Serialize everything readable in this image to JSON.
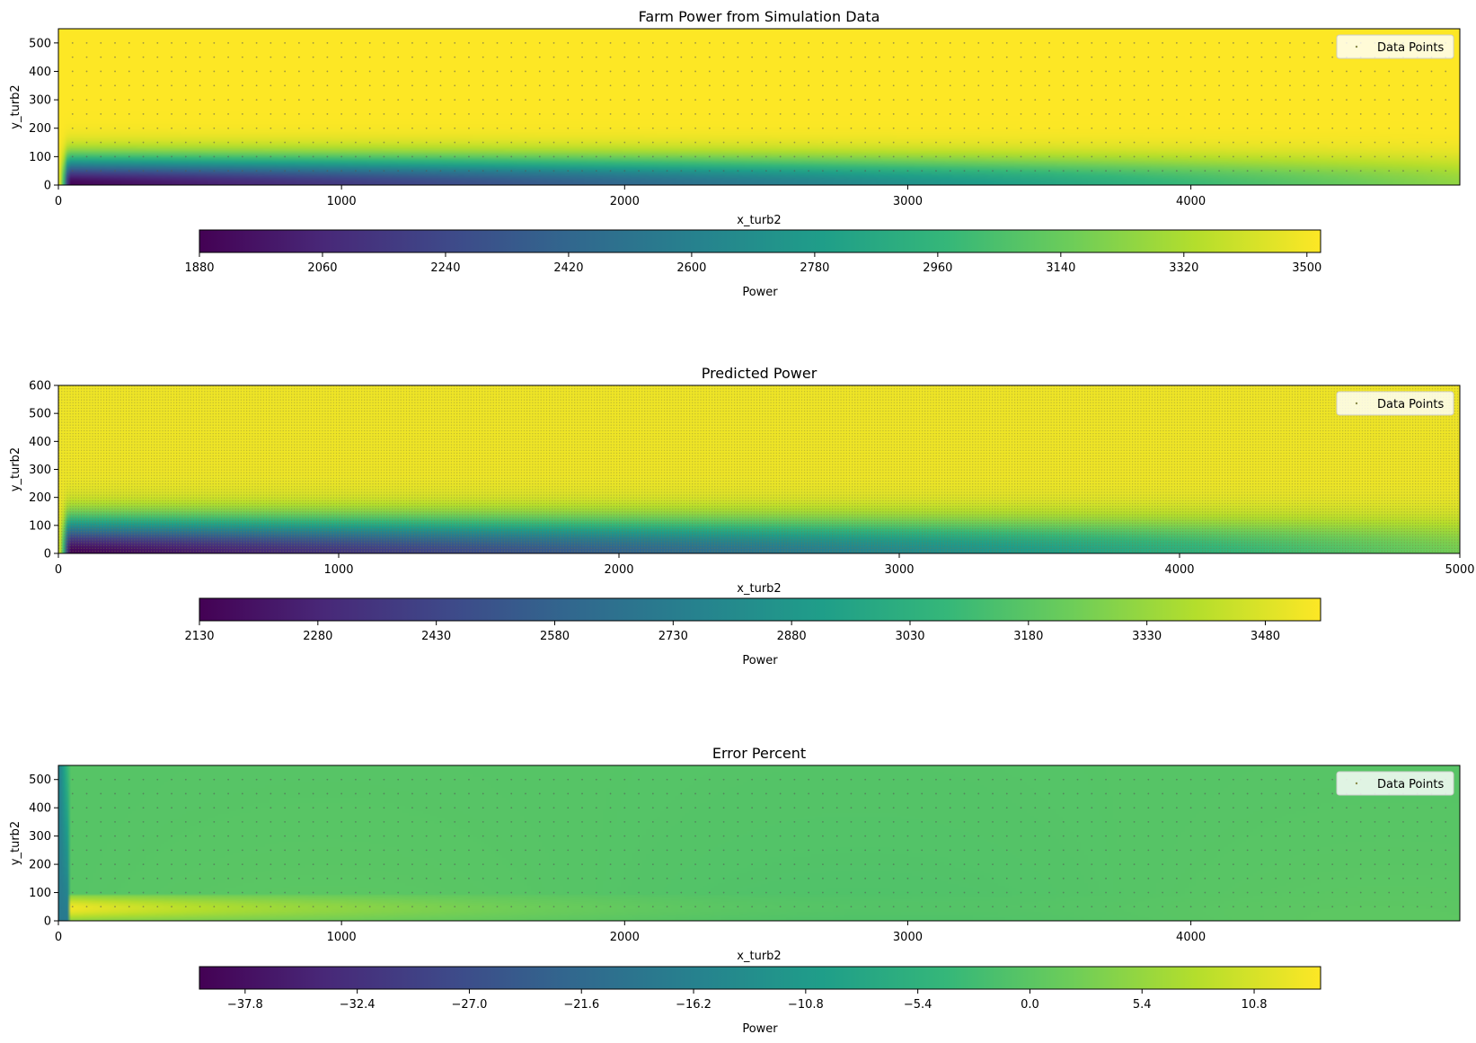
{
  "chart_data": [
    {
      "type": "heatmap",
      "title": "Farm Power from Simulation Data",
      "xlabel": "x_turb2",
      "ylabel": "y_turb2",
      "xlim": [
        0,
        4950
      ],
      "ylim": [
        0,
        550
      ],
      "x_ticks": [
        "0",
        "1000",
        "2000",
        "3000",
        "4000"
      ],
      "y_ticks": [
        "0",
        "100",
        "200",
        "300",
        "400",
        "500"
      ],
      "legend": {
        "label": "Data Points",
        "placement": "top-right"
      },
      "colorbar": {
        "label": "Power",
        "range": [
          1880,
          3520
        ],
        "ticks": [
          "1880",
          "2060",
          "2240",
          "2420",
          "2600",
          "2780",
          "2960",
          "3140",
          "3320",
          "3500"
        ]
      },
      "field": {
        "background": 3520,
        "wake_core_min": 1880,
        "wake_width_y": 120,
        "recovery_at_x_end": 3250
      },
      "data_point_spacing": {
        "x": 50,
        "y": 50
      }
    },
    {
      "type": "heatmap",
      "title": "Predicted Power",
      "xlabel": "x_turb2",
      "ylabel": "y_turb2",
      "xlim": [
        0,
        5000
      ],
      "ylim": [
        0,
        600
      ],
      "x_ticks": [
        "0",
        "1000",
        "2000",
        "3000",
        "4000",
        "5000"
      ],
      "y_ticks": [
        "0",
        "100",
        "200",
        "300",
        "400",
        "500",
        "600"
      ],
      "legend": {
        "label": "Data Points",
        "placement": "top-right"
      },
      "colorbar": {
        "label": "Power",
        "range": [
          2130,
          3550
        ],
        "ticks": [
          "2130",
          "2280",
          "2430",
          "2580",
          "2730",
          "2880",
          "3030",
          "3180",
          "3330",
          "3480"
        ]
      },
      "field": {
        "background": 3520,
        "wake_core_min": 2130,
        "wake_width_y": 150,
        "recovery_at_x_end": 3250
      },
      "data_point_spacing": {
        "x": 10,
        "y": 10
      }
    },
    {
      "type": "heatmap",
      "title": "Error Percent",
      "xlabel": "x_turb2",
      "ylabel": "y_turb2",
      "xlim": [
        0,
        4950
      ],
      "ylim": [
        0,
        550
      ],
      "x_ticks": [
        "0",
        "1000",
        "2000",
        "3000",
        "4000"
      ],
      "y_ticks": [
        "0",
        "100",
        "200",
        "300",
        "400",
        "500"
      ],
      "legend": {
        "label": "Data Points",
        "placement": "top-right"
      },
      "colorbar": {
        "label": "Power",
        "range": [
          -40,
          14
        ],
        "ticks": [
          "−37.8",
          "−32.4",
          "−27.0",
          "−21.6",
          "−16.2",
          "−10.8",
          "−5.4",
          "0.0",
          "5.4",
          "10.8"
        ]
      },
      "field": {
        "background": -0.5,
        "near_turbine_min": -18,
        "near_wake_max": 13
      },
      "data_point_spacing": {
        "x": 50,
        "y": 50
      }
    }
  ]
}
